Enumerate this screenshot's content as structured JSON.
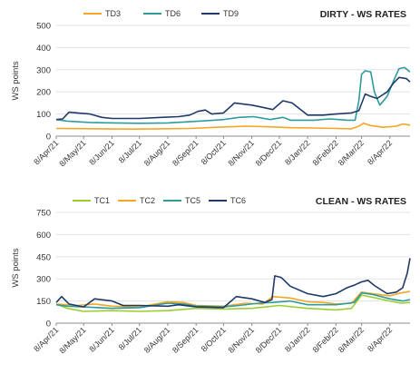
{
  "chart_data": [
    {
      "type": "line",
      "title": "DIRTY - WS RATES",
      "ylabel": "WS points",
      "xlabel": "",
      "ylim": [
        0,
        500
      ],
      "yticks": [
        0,
        100,
        200,
        300,
        400,
        500
      ],
      "x_start": "2021-04-08",
      "x_end": "2022-04-30",
      "x_ticks": [
        "2021-04-08",
        "2021-05-08",
        "2021-06-08",
        "2021-07-08",
        "2021-08-08",
        "2021-09-08",
        "2021-10-08",
        "2021-11-08",
        "2021-12-08",
        "2022-01-08",
        "2022-02-08",
        "2022-03-08",
        "2022-04-08"
      ],
      "x_tick_labels": [
        "8/Apr/21",
        "8/May/21",
        "8/Jun/21",
        "8/Jul/21",
        "8/Aug/21",
        "8/Sep/21",
        "8/Oct/21",
        "8/Nov/21",
        "8/Dec/21",
        "8/Jan/22",
        "8/Feb/22",
        "8/Mar/22",
        "8/Apr/22"
      ],
      "grid": "horizontal",
      "legend_position": "top",
      "series": [
        {
          "name": "TD3",
          "color": "#F5A623",
          "points": [
            [
              "2021-04-08",
              35
            ],
            [
              "2021-05-01",
              34
            ],
            [
              "2021-06-01",
              33
            ],
            [
              "2021-07-01",
              32
            ],
            [
              "2021-08-01",
              33
            ],
            [
              "2021-09-01",
              35
            ],
            [
              "2021-10-01",
              40
            ],
            [
              "2021-11-01",
              45
            ],
            [
              "2021-12-01",
              42
            ],
            [
              "2021-12-20",
              38
            ],
            [
              "2022-01-15",
              37
            ],
            [
              "2022-02-08",
              35
            ],
            [
              "2022-02-25",
              33
            ],
            [
              "2022-03-05",
              45
            ],
            [
              "2022-03-10",
              58
            ],
            [
              "2022-03-18",
              48
            ],
            [
              "2022-04-01",
              40
            ],
            [
              "2022-04-15",
              45
            ],
            [
              "2022-04-22",
              55
            ],
            [
              "2022-04-30",
              50
            ]
          ]
        },
        {
          "name": "TD6",
          "color": "#2E9C9C",
          "points": [
            [
              "2021-04-08",
              75
            ],
            [
              "2021-04-20",
              68
            ],
            [
              "2021-05-15",
              62
            ],
            [
              "2021-06-10",
              60
            ],
            [
              "2021-07-08",
              58
            ],
            [
              "2021-08-08",
              60
            ],
            [
              "2021-09-01",
              65
            ],
            [
              "2021-09-20",
              70
            ],
            [
              "2021-10-08",
              75
            ],
            [
              "2021-10-25",
              85
            ],
            [
              "2021-11-10",
              88
            ],
            [
              "2021-11-28",
              75
            ],
            [
              "2021-12-12",
              85
            ],
            [
              "2021-12-20",
              72
            ],
            [
              "2022-01-15",
              72
            ],
            [
              "2022-02-01",
              78
            ],
            [
              "2022-02-20",
              72
            ],
            [
              "2022-03-01",
              72
            ],
            [
              "2022-03-05",
              160
            ],
            [
              "2022-03-08",
              280
            ],
            [
              "2022-03-12",
              295
            ],
            [
              "2022-03-18",
              290
            ],
            [
              "2022-03-22",
              200
            ],
            [
              "2022-03-28",
              140
            ],
            [
              "2022-04-05",
              180
            ],
            [
              "2022-04-12",
              250
            ],
            [
              "2022-04-18",
              305
            ],
            [
              "2022-04-24",
              310
            ],
            [
              "2022-04-30",
              290
            ]
          ]
        },
        {
          "name": "TD9",
          "color": "#1F3A68",
          "points": [
            [
              "2021-04-08",
              75
            ],
            [
              "2021-04-15",
              78
            ],
            [
              "2021-04-22",
              108
            ],
            [
              "2021-05-01",
              105
            ],
            [
              "2021-05-15",
              100
            ],
            [
              "2021-05-28",
              85
            ],
            [
              "2021-06-08",
              80
            ],
            [
              "2021-07-08",
              80
            ],
            [
              "2021-08-01",
              85
            ],
            [
              "2021-08-20",
              88
            ],
            [
              "2021-09-01",
              95
            ],
            [
              "2021-09-10",
              112
            ],
            [
              "2021-09-18",
              118
            ],
            [
              "2021-09-25",
              100
            ],
            [
              "2021-10-08",
              105
            ],
            [
              "2021-10-20",
              150
            ],
            [
              "2021-11-08",
              140
            ],
            [
              "2021-11-20",
              130
            ],
            [
              "2021-12-01",
              120
            ],
            [
              "2021-12-12",
              160
            ],
            [
              "2021-12-22",
              150
            ],
            [
              "2022-01-08",
              95
            ],
            [
              "2022-01-25",
              95
            ],
            [
              "2022-02-08",
              100
            ],
            [
              "2022-02-25",
              105
            ],
            [
              "2022-03-05",
              115
            ],
            [
              "2022-03-12",
              190
            ],
            [
              "2022-03-18",
              180
            ],
            [
              "2022-03-25",
              170
            ],
            [
              "2022-04-05",
              200
            ],
            [
              "2022-04-12",
              240
            ],
            [
              "2022-04-18",
              265
            ],
            [
              "2022-04-26",
              260
            ],
            [
              "2022-04-30",
              245
            ]
          ]
        }
      ]
    },
    {
      "type": "line",
      "title": "CLEAN - WS RATES",
      "ylabel": "WS points",
      "xlabel": "",
      "ylim": [
        0,
        750
      ],
      "yticks": [
        0,
        150,
        300,
        450,
        600,
        750
      ],
      "x_start": "2021-04-08",
      "x_end": "2022-04-30",
      "x_ticks": [
        "2021-04-08",
        "2021-05-08",
        "2021-06-08",
        "2021-07-08",
        "2021-08-08",
        "2021-09-08",
        "2021-10-08",
        "2021-11-08",
        "2021-12-08",
        "2022-01-08",
        "2022-02-08",
        "2022-03-08",
        "2022-04-08"
      ],
      "x_tick_labels": [
        "8/Apr/21",
        "8/May/21",
        "8/Jun/21",
        "8/Jul/21",
        "8/Aug/21",
        "8/Sep/21",
        "8/Oct/21",
        "8/Nov/21",
        "8/Dec/21",
        "8/Jan/22",
        "8/Feb/22",
        "8/Mar/22",
        "8/Apr/22"
      ],
      "grid": "horizontal",
      "legend_position": "top",
      "series": [
        {
          "name": "TC1",
          "color": "#9ACD32",
          "points": [
            [
              "2021-04-08",
              130
            ],
            [
              "2021-04-20",
              100
            ],
            [
              "2021-05-08",
              80
            ],
            [
              "2021-06-08",
              85
            ],
            [
              "2021-07-08",
              80
            ],
            [
              "2021-08-08",
              85
            ],
            [
              "2021-09-08",
              100
            ],
            [
              "2021-10-08",
              95
            ],
            [
              "2021-11-08",
              100
            ],
            [
              "2021-12-08",
              120
            ],
            [
              "2022-01-08",
              100
            ],
            [
              "2022-02-08",
              90
            ],
            [
              "2022-02-25",
              100
            ],
            [
              "2022-03-08",
              190
            ],
            [
              "2022-03-20",
              175
            ],
            [
              "2022-04-08",
              150
            ],
            [
              "2022-04-20",
              135
            ],
            [
              "2022-04-30",
              140
            ]
          ]
        },
        {
          "name": "TC2",
          "color": "#F5A623",
          "points": [
            [
              "2021-04-08",
              130
            ],
            [
              "2021-05-01",
              120
            ],
            [
              "2021-05-20",
              130
            ],
            [
              "2021-06-08",
              115
            ],
            [
              "2021-07-08",
              110
            ],
            [
              "2021-08-08",
              145
            ],
            [
              "2021-08-25",
              140
            ],
            [
              "2021-09-08",
              120
            ],
            [
              "2021-10-08",
              115
            ],
            [
              "2021-11-01",
              135
            ],
            [
              "2021-11-20",
              130
            ],
            [
              "2021-12-01",
              180
            ],
            [
              "2021-12-20",
              170
            ],
            [
              "2022-01-08",
              145
            ],
            [
              "2022-01-25",
              140
            ],
            [
              "2022-02-08",
              130
            ],
            [
              "2022-02-25",
              135
            ],
            [
              "2022-03-08",
              210
            ],
            [
              "2022-03-20",
              200
            ],
            [
              "2022-04-08",
              185
            ],
            [
              "2022-04-20",
              205
            ],
            [
              "2022-04-30",
              215
            ]
          ]
        },
        {
          "name": "TC5",
          "color": "#2E9C9C",
          "points": [
            [
              "2021-04-08",
              125
            ],
            [
              "2021-04-20",
              115
            ],
            [
              "2021-05-08",
              110
            ],
            [
              "2021-06-08",
              100
            ],
            [
              "2021-07-08",
              105
            ],
            [
              "2021-08-08",
              135
            ],
            [
              "2021-08-25",
              130
            ],
            [
              "2021-09-08",
              115
            ],
            [
              "2021-10-08",
              110
            ],
            [
              "2021-10-25",
              120
            ],
            [
              "2021-11-15",
              135
            ],
            [
              "2021-12-01",
              140
            ],
            [
              "2021-12-20",
              150
            ],
            [
              "2022-01-08",
              125
            ],
            [
              "2022-02-08",
              125
            ],
            [
              "2022-02-28",
              140
            ],
            [
              "2022-03-08",
              205
            ],
            [
              "2022-03-20",
              195
            ],
            [
              "2022-04-08",
              165
            ],
            [
              "2022-04-22",
              150
            ],
            [
              "2022-04-30",
              160
            ]
          ]
        },
        {
          "name": "TC6",
          "color": "#1F3A68",
          "points": [
            [
              "2021-04-08",
              140
            ],
            [
              "2021-04-14",
              180
            ],
            [
              "2021-04-22",
              130
            ],
            [
              "2021-05-08",
              110
            ],
            [
              "2021-05-20",
              165
            ],
            [
              "2021-06-08",
              150
            ],
            [
              "2021-06-20",
              120
            ],
            [
              "2021-07-08",
              120
            ],
            [
              "2021-08-08",
              115
            ],
            [
              "2021-08-20",
              125
            ],
            [
              "2021-09-08",
              110
            ],
            [
              "2021-10-08",
              105
            ],
            [
              "2021-10-22",
              180
            ],
            [
              "2021-11-08",
              165
            ],
            [
              "2021-11-22",
              140
            ],
            [
              "2021-11-30",
              160
            ],
            [
              "2021-12-03",
              320
            ],
            [
              "2021-12-10",
              310
            ],
            [
              "2021-12-20",
              250
            ],
            [
              "2022-01-08",
              200
            ],
            [
              "2022-01-25",
              180
            ],
            [
              "2022-02-08",
              200
            ],
            [
              "2022-02-20",
              240
            ],
            [
              "2022-03-01",
              260
            ],
            [
              "2022-03-08",
              280
            ],
            [
              "2022-03-15",
              290
            ],
            [
              "2022-03-22",
              255
            ],
            [
              "2022-04-05",
              200
            ],
            [
              "2022-04-15",
              210
            ],
            [
              "2022-04-22",
              240
            ],
            [
              "2022-04-27",
              340
            ],
            [
              "2022-04-30",
              440
            ]
          ]
        }
      ]
    }
  ]
}
